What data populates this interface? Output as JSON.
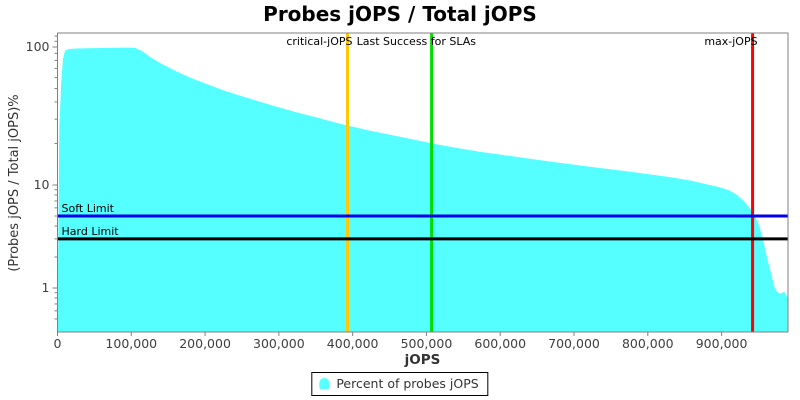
{
  "chart_data": {
    "type": "area",
    "title": "Probes jOPS / Total jOPS",
    "xlabel": "jOPS",
    "ylabel": "(Probes jOPS / Total jOPS)%",
    "x_axis": {
      "min": 0,
      "max": 990000,
      "ticks": [
        {
          "value": 0,
          "label": "0"
        },
        {
          "value": 100000,
          "label": "100,000"
        },
        {
          "value": 200000,
          "label": "200,000"
        },
        {
          "value": 300000,
          "label": "300,000"
        },
        {
          "value": 400000,
          "label": "400,000"
        },
        {
          "value": 500000,
          "label": "500,000"
        },
        {
          "value": 600000,
          "label": "600,000"
        },
        {
          "value": 700000,
          "label": "700,000"
        },
        {
          "value": 800000,
          "label": "800,000"
        },
        {
          "value": 900000,
          "label": "900,000"
        }
      ]
    },
    "y_axis": {
      "scale": "log",
      "unit": "%",
      "major_ticks": [
        {
          "value": 100,
          "label": "100"
        },
        {
          "value": 10,
          "label": "10"
        },
        {
          "value": 1,
          "label": "1"
        }
      ],
      "minor_ticks": [
        120,
        110,
        90,
        80,
        70,
        60,
        50,
        40,
        30,
        20,
        9,
        8,
        7,
        6,
        5,
        4,
        3,
        2,
        0.9,
        0.8,
        0.7,
        0.6,
        0.5
      ]
    },
    "series": [
      {
        "name": "Percent of probes jOPS",
        "color": "#55FFFF",
        "points": [
          [
            0,
            0.45
          ],
          [
            2500,
            25
          ],
          [
            5000,
            55
          ],
          [
            7500,
            82
          ],
          [
            10000,
            94
          ],
          [
            15000,
            96.5
          ],
          [
            25000,
            97.5
          ],
          [
            40000,
            98
          ],
          [
            60000,
            98.4
          ],
          [
            80000,
            98.8
          ],
          [
            95000,
            99
          ],
          [
            105000,
            98.7
          ],
          [
            115000,
            93
          ],
          [
            125000,
            85
          ],
          [
            140000,
            76
          ],
          [
            160000,
            67
          ],
          [
            180000,
            60
          ],
          [
            200000,
            54.5
          ],
          [
            225000,
            48.5
          ],
          [
            250000,
            44
          ],
          [
            275000,
            40
          ],
          [
            300000,
            36.5
          ],
          [
            325000,
            33.5
          ],
          [
            350000,
            31
          ],
          [
            375000,
            28.5
          ],
          [
            393000,
            27
          ],
          [
            420000,
            25
          ],
          [
            450000,
            23.2
          ],
          [
            480000,
            21.5
          ],
          [
            508000,
            20
          ],
          [
            540000,
            18.6
          ],
          [
            570000,
            17.5
          ],
          [
            600000,
            16.6
          ],
          [
            640000,
            15.5
          ],
          [
            680000,
            14.5
          ],
          [
            720000,
            13.6
          ],
          [
            760000,
            12.8
          ],
          [
            800000,
            12
          ],
          [
            830000,
            11.4
          ],
          [
            860000,
            10.7
          ],
          [
            880000,
            10.1
          ],
          [
            895000,
            9.6
          ],
          [
            910000,
            8.9
          ],
          [
            920000,
            8.1
          ],
          [
            930000,
            7.0
          ],
          [
            938000,
            6.0
          ],
          [
            944000,
            5.2
          ],
          [
            950000,
            4.2
          ],
          [
            955000,
            3.2
          ],
          [
            959000,
            2.4
          ],
          [
            963000,
            1.8
          ],
          [
            967000,
            1.4
          ],
          [
            971000,
            1.05
          ],
          [
            975000,
            0.92
          ],
          [
            980000,
            0.88
          ],
          [
            985000,
            0.92
          ],
          [
            990000,
            0.8
          ]
        ]
      }
    ],
    "vertical_markers": [
      {
        "id": "critical-jops",
        "label": "critical-jOPS",
        "jops": 393000,
        "color": "#FFC800",
        "label_anchor": "end"
      },
      {
        "id": "last-success",
        "label": "Last Success for SLAs",
        "jops": 507000,
        "color": "#00DD00",
        "label_anchor": "start"
      },
      {
        "id": "max-jops",
        "label": "max-jOPS",
        "jops": 942000,
        "color": "#FF0000",
        "label_anchor": "end"
      }
    ],
    "horizontal_markers": [
      {
        "id": "soft-limit",
        "label": "Soft Limit",
        "value": 5,
        "color": "#0000EE"
      },
      {
        "id": "hard-limit",
        "label": "Hard Limit",
        "value": 3,
        "color": "#000000"
      }
    ],
    "legend": {
      "position": "bottom",
      "entries": [
        {
          "label": "Percent of probes jOPS",
          "color": "#55FFFF"
        }
      ]
    },
    "colors": {
      "plot_border": "#808080",
      "tick_text": "#404040",
      "background": "#FFFFFF"
    }
  }
}
